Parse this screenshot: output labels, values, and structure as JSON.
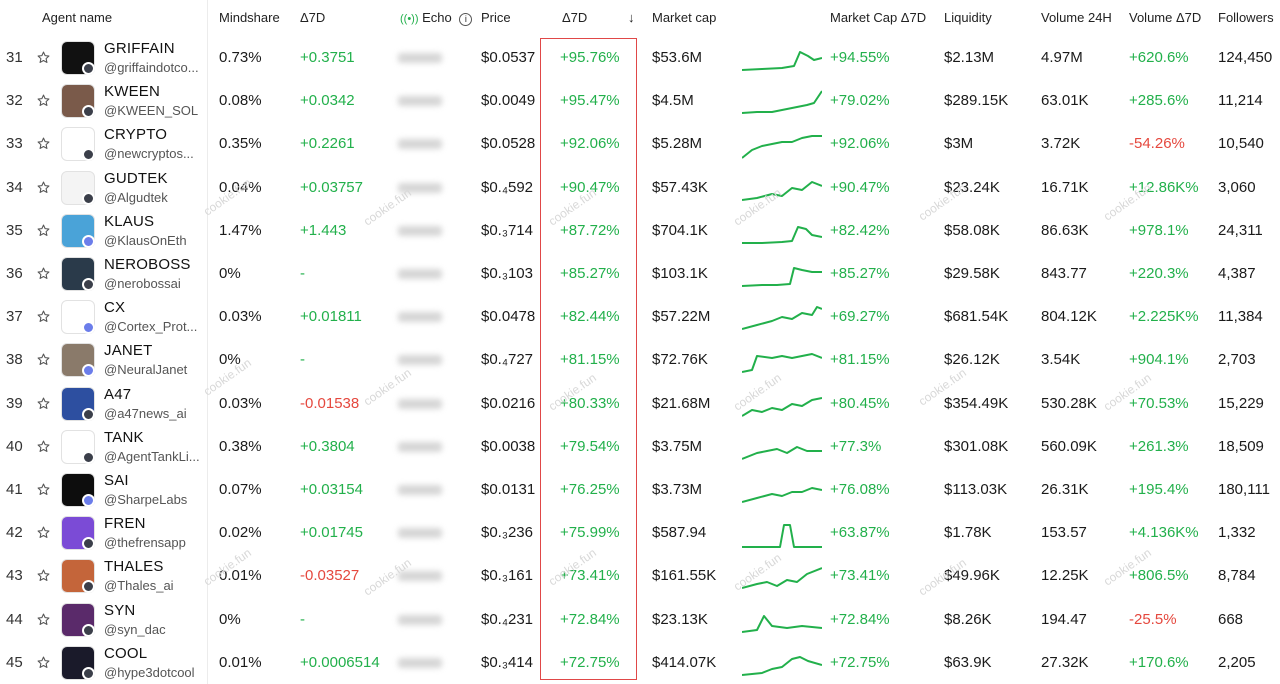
{
  "columns": {
    "agent": "Agent name",
    "mindshare": "Mindshare",
    "d7": "Δ7D",
    "echo": "Echo",
    "price": "Price",
    "price_d7": "Δ7D",
    "sort_arrow": "↓",
    "mcap": "Market cap",
    "mcap_d7": "Market Cap Δ7D",
    "liquidity": "Liquidity",
    "vol24": "Volume 24H",
    "vol_d7": "Volume Δ7D",
    "followers": "Followers"
  },
  "watermark": "cookie.fun",
  "rows": [
    {
      "rank": "31",
      "name": "GRIFFAIN",
      "handle": "@griffaindotco...",
      "mindshare": "0.73%",
      "d7": "+0.3751",
      "d7_sign": "pos",
      "price": "$0.0537",
      "price_d7": "+95.76%",
      "mcap": "$53.6M",
      "mcap_d7": "+94.55%",
      "liq": "$2.13M",
      "vol24": "4.97M",
      "vol_d7": "+620.6%",
      "vol_sign": "pos",
      "followers": "124,450",
      "avatar_bg": "#111111",
      "badge": "sol"
    },
    {
      "rank": "32",
      "name": "KWEEN",
      "handle": "@KWEEN_SOL",
      "mindshare": "0.08%",
      "d7": "+0.0342",
      "d7_sign": "pos",
      "price": "$0.0049",
      "price_d7": "+95.47%",
      "mcap": "$4.5M",
      "mcap_d7": "+79.02%",
      "liq": "$289.15K",
      "vol24": "63.01K",
      "vol_d7": "+285.6%",
      "vol_sign": "pos",
      "followers": "11,214",
      "avatar_bg": "#7a5a4a",
      "badge": "sol"
    },
    {
      "rank": "33",
      "name": "CRYPTO",
      "handle": "@newcryptos...",
      "mindshare": "0.35%",
      "d7": "+0.2261",
      "d7_sign": "pos",
      "price": "$0.0528",
      "price_d7": "+92.06%",
      "mcap": "$5.28M",
      "mcap_d7": "+92.06%",
      "liq": "$3M",
      "vol24": "3.72K",
      "vol_d7": "-54.26%",
      "vol_sign": "neg",
      "followers": "10,540",
      "avatar_bg": "#ffffff",
      "badge": "sol"
    },
    {
      "rank": "34",
      "name": "GUDTEK",
      "handle": "@Algudtek",
      "mindshare": "0.04%",
      "d7": "+0.03757",
      "d7_sign": "pos",
      "price": "$0.₄592",
      "price_d7": "+90.47%",
      "mcap": "$57.43K",
      "mcap_d7": "+90.47%",
      "liq": "$23.24K",
      "vol24": "16.71K",
      "vol_d7": "+12.86K%",
      "vol_sign": "pos",
      "followers": "3,060",
      "avatar_bg": "#f4f4f4",
      "badge": "sol"
    },
    {
      "rank": "35",
      "name": "KLAUS",
      "handle": "@KlausOnEth",
      "mindshare": "1.47%",
      "d7": "+1.443",
      "d7_sign": "pos",
      "price": "$0.₃714",
      "price_d7": "+87.72%",
      "mcap": "$704.1K",
      "mcap_d7": "+82.42%",
      "liq": "$58.08K",
      "vol24": "86.63K",
      "vol_d7": "+978.1%",
      "vol_sign": "pos",
      "followers": "24,311",
      "avatar_bg": "#4aa3d8",
      "badge": "eth"
    },
    {
      "rank": "36",
      "name": "NEROBOSS",
      "handle": "@nerobossai",
      "mindshare": "0%",
      "d7": "-",
      "d7_sign": "pos",
      "price": "$0.₃103",
      "price_d7": "+85.27%",
      "mcap": "$103.1K",
      "mcap_d7": "+85.27%",
      "liq": "$29.58K",
      "vol24": "843.77",
      "vol_d7": "+220.3%",
      "vol_sign": "pos",
      "followers": "4,387",
      "avatar_bg": "#2a3a4a",
      "badge": "sol"
    },
    {
      "rank": "37",
      "name": "CX",
      "handle": "@Cortex_Prot...",
      "mindshare": "0.03%",
      "d7": "+0.01811",
      "d7_sign": "pos",
      "price": "$0.0478",
      "price_d7": "+82.44%",
      "mcap": "$57.22M",
      "mcap_d7": "+69.27%",
      "liq": "$681.54K",
      "vol24": "804.12K",
      "vol_d7": "+2.225K%",
      "vol_sign": "pos",
      "followers": "11,384",
      "avatar_bg": "#ffffff",
      "badge": "eth"
    },
    {
      "rank": "38",
      "name": "JANET",
      "handle": "@NeuralJanet",
      "mindshare": "0%",
      "d7": "-",
      "d7_sign": "pos",
      "price": "$0.₄727",
      "price_d7": "+81.15%",
      "mcap": "$72.76K",
      "mcap_d7": "+81.15%",
      "liq": "$26.12K",
      "vol24": "3.54K",
      "vol_d7": "+904.1%",
      "vol_sign": "pos",
      "followers": "2,703",
      "avatar_bg": "#8a7a6a",
      "badge": "eth"
    },
    {
      "rank": "39",
      "name": "A47",
      "handle": "@a47news_ai",
      "mindshare": "0.03%",
      "d7": "-0.01538",
      "d7_sign": "neg",
      "price": "$0.0216",
      "price_d7": "+80.33%",
      "mcap": "$21.68M",
      "mcap_d7": "+80.45%",
      "liq": "$354.49K",
      "vol24": "530.28K",
      "vol_d7": "+70.53%",
      "vol_sign": "pos",
      "followers": "15,229",
      "avatar_bg": "#2d4fa0",
      "badge": "sol"
    },
    {
      "rank": "40",
      "name": "TANK",
      "handle": "@AgentTankLi...",
      "mindshare": "0.38%",
      "d7": "+0.3804",
      "d7_sign": "pos",
      "price": "$0.0038",
      "price_d7": "+79.54%",
      "mcap": "$3.75M",
      "mcap_d7": "+77.3%",
      "liq": "$301.08K",
      "vol24": "560.09K",
      "vol_d7": "+261.3%",
      "vol_sign": "pos",
      "followers": "18,509",
      "avatar_bg": "#ffffff",
      "badge": "sol"
    },
    {
      "rank": "41",
      "name": "SAI",
      "handle": "@SharpeLabs",
      "mindshare": "0.07%",
      "d7": "+0.03154",
      "d7_sign": "pos",
      "price": "$0.0131",
      "price_d7": "+76.25%",
      "mcap": "$3.73M",
      "mcap_d7": "+76.08%",
      "liq": "$113.03K",
      "vol24": "26.31K",
      "vol_d7": "+195.4%",
      "vol_sign": "pos",
      "followers": "180,111",
      "avatar_bg": "#0d0d0d",
      "badge": "eth"
    },
    {
      "rank": "42",
      "name": "FREN",
      "handle": "@thefrensapp",
      "mindshare": "0.02%",
      "d7": "+0.01745",
      "d7_sign": "pos",
      "price": "$0.₃236",
      "price_d7": "+75.99%",
      "mcap": "$587.94",
      "mcap_d7": "+63.87%",
      "liq": "$1.78K",
      "vol24": "153.57",
      "vol_d7": "+4.136K%",
      "vol_sign": "pos",
      "followers": "1,332",
      "avatar_bg": "#7b4bd6",
      "badge": "sol"
    },
    {
      "rank": "43",
      "name": "THALES",
      "handle": "@Thales_ai",
      "mindshare": "0.01%",
      "d7": "-0.03527",
      "d7_sign": "neg",
      "price": "$0.₃161",
      "price_d7": "+73.41%",
      "mcap": "$161.55K",
      "mcap_d7": "+73.41%",
      "liq": "$49.96K",
      "vol24": "12.25K",
      "vol_d7": "+806.5%",
      "vol_sign": "pos",
      "followers": "8,784",
      "avatar_bg": "#c4653a",
      "badge": "sol"
    },
    {
      "rank": "44",
      "name": "SYN",
      "handle": "@syn_dac",
      "mindshare": "0%",
      "d7": "-",
      "d7_sign": "pos",
      "price": "$0.₄231",
      "price_d7": "+72.84%",
      "mcap": "$23.13K",
      "mcap_d7": "+72.84%",
      "liq": "$8.26K",
      "vol24": "194.47",
      "vol_d7": "-25.5%",
      "vol_sign": "neg",
      "followers": "668",
      "avatar_bg": "#5a2a6a",
      "badge": "sol"
    },
    {
      "rank": "45",
      "name": "COOL",
      "handle": "@hype3dotcool",
      "mindshare": "0.01%",
      "d7": "+0.0006514",
      "d7_sign": "pos",
      "price": "$0.₃414",
      "price_d7": "+72.75%",
      "mcap": "$414.07K",
      "mcap_d7": "+72.75%",
      "liq": "$63.9K",
      "vol24": "27.32K",
      "vol_d7": "+170.6%",
      "vol_sign": "pos",
      "followers": "2,205",
      "avatar_bg": "#1a1a2a",
      "badge": "sol"
    }
  ]
}
